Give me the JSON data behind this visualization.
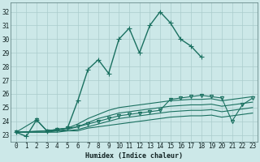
{
  "xlabel": "Humidex (Indice chaleur)",
  "bg_color": "#cce8e8",
  "grid_color": "#aacccc",
  "line_color": "#1a7060",
  "xlim": [
    -0.5,
    23.5
  ],
  "ylim": [
    22.5,
    32.7
  ],
  "yticks": [
    23,
    24,
    25,
    26,
    27,
    28,
    29,
    30,
    31,
    32
  ],
  "xticks": [
    0,
    1,
    2,
    3,
    4,
    5,
    6,
    7,
    8,
    9,
    10,
    11,
    12,
    13,
    14,
    15,
    16,
    17,
    18,
    19,
    20,
    21,
    22,
    23
  ],
  "lines": [
    {
      "x": [
        0,
        1,
        2,
        3,
        4,
        5,
        6,
        7,
        8,
        9,
        10,
        11,
        12,
        13,
        14,
        15,
        16,
        17,
        18
      ],
      "y": [
        23.2,
        22.9,
        24.1,
        23.3,
        23.4,
        23.5,
        25.5,
        27.8,
        28.5,
        27.5,
        30.0,
        30.8,
        29.0,
        31.0,
        32.0,
        31.2,
        30.0,
        29.5,
        28.7
      ],
      "marker": "+",
      "markersize": 4,
      "linewidth": 1.0,
      "zorder": 5
    },
    {
      "x": [
        0,
        3,
        4,
        5,
        6,
        7,
        8,
        9,
        10,
        11,
        12,
        13,
        14,
        15,
        16,
        17,
        18,
        19,
        20,
        21,
        22,
        23
      ],
      "y": [
        23.2,
        23.3,
        23.4,
        23.5,
        23.8,
        24.2,
        24.5,
        24.8,
        25.0,
        25.1,
        25.2,
        25.3,
        25.4,
        25.5,
        25.55,
        25.6,
        25.6,
        25.65,
        25.5,
        25.6,
        25.7,
        25.8
      ],
      "marker": null,
      "markersize": 0,
      "linewidth": 0.8,
      "zorder": 3
    },
    {
      "x": [
        0,
        3,
        4,
        5,
        6,
        7,
        8,
        9,
        10,
        11,
        12,
        13,
        14,
        15,
        16,
        17,
        18,
        19,
        20,
        21,
        22,
        23
      ],
      "y": [
        23.2,
        23.3,
        23.3,
        23.4,
        23.6,
        23.9,
        24.2,
        24.4,
        24.6,
        24.7,
        24.8,
        24.9,
        25.0,
        25.1,
        25.15,
        25.2,
        25.2,
        25.25,
        25.1,
        25.2,
        25.3,
        25.4
      ],
      "marker": null,
      "markersize": 0,
      "linewidth": 0.8,
      "zorder": 3
    },
    {
      "x": [
        0,
        3,
        4,
        5,
        6,
        7,
        8,
        9,
        10,
        11,
        12,
        13,
        14,
        15,
        16,
        17,
        18,
        19,
        20,
        21,
        22,
        23
      ],
      "y": [
        23.2,
        23.2,
        23.3,
        23.3,
        23.4,
        23.6,
        23.8,
        24.0,
        24.2,
        24.3,
        24.4,
        24.5,
        24.6,
        24.7,
        24.75,
        24.8,
        24.8,
        24.85,
        24.7,
        24.8,
        24.9,
        25.0
      ],
      "marker": null,
      "markersize": 0,
      "linewidth": 0.8,
      "zorder": 3
    },
    {
      "x": [
        0,
        3,
        4,
        5,
        6,
        7,
        8,
        9,
        10,
        11,
        12,
        13,
        14,
        15,
        16,
        17,
        18,
        19,
        20,
        21,
        22,
        23
      ],
      "y": [
        23.2,
        23.2,
        23.2,
        23.3,
        23.3,
        23.5,
        23.6,
        23.7,
        23.8,
        23.9,
        24.0,
        24.1,
        24.2,
        24.3,
        24.35,
        24.4,
        24.4,
        24.45,
        24.3,
        24.4,
        24.5,
        24.6
      ],
      "marker": null,
      "markersize": 0,
      "linewidth": 0.8,
      "zorder": 3
    },
    {
      "x": [
        0,
        2,
        3,
        4,
        5,
        6,
        7,
        8,
        9,
        10,
        11,
        12,
        13,
        14,
        15,
        16,
        17,
        18,
        19,
        20,
        21,
        22,
        23
      ],
      "y": [
        23.2,
        24.1,
        23.3,
        23.4,
        23.5,
        23.6,
        23.8,
        24.0,
        24.2,
        24.4,
        24.5,
        24.6,
        24.7,
        24.8,
        25.6,
        25.7,
        25.8,
        25.9,
        25.8,
        25.7,
        24.0,
        25.2,
        25.7
      ],
      "marker": "v",
      "markersize": 3,
      "linewidth": 0.8,
      "zorder": 4
    }
  ]
}
